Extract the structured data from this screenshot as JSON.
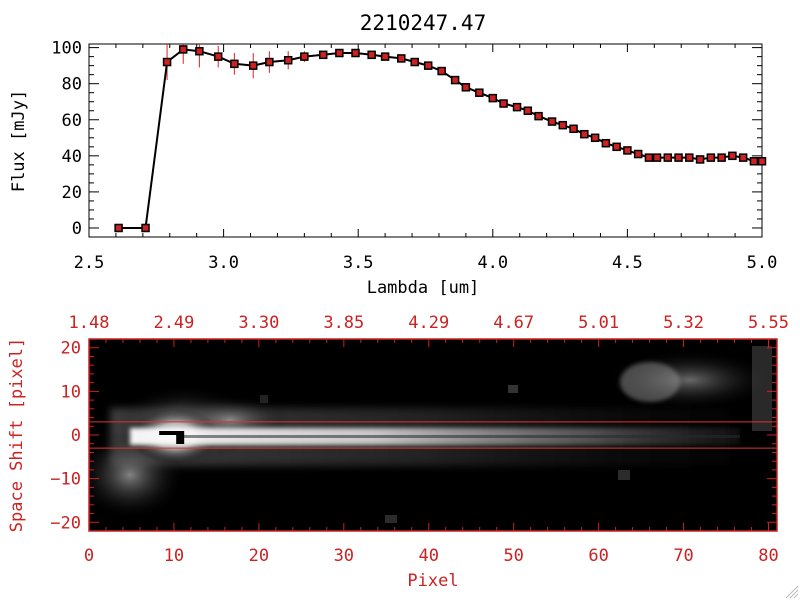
{
  "chart_data": [
    {
      "type": "line",
      "title": "2210247.47",
      "xlabel": "Lambda [um]",
      "ylabel": "Flux [mJy]",
      "xlim": [
        2.5,
        5.0
      ],
      "ylim": [
        -5,
        102
      ],
      "xticks": [
        2.5,
        3.0,
        3.5,
        4.0,
        4.5,
        5.0
      ],
      "xtick_labels": [
        "2.5",
        "3.0",
        "3.5",
        "4.0",
        "4.5",
        "5.0"
      ],
      "yticks": [
        0,
        20,
        40,
        60,
        80,
        100
      ],
      "ytick_labels": [
        "0",
        "20",
        "40",
        "60",
        "80",
        "100"
      ],
      "series": [
        {
          "name": "flux",
          "x": [
            2.61,
            2.71,
            2.79,
            2.85,
            2.91,
            2.98,
            3.04,
            3.11,
            3.17,
            3.24,
            3.3,
            3.37,
            3.43,
            3.49,
            3.55,
            3.6,
            3.66,
            3.71,
            3.76,
            3.81,
            3.86,
            3.9,
            3.95,
            4.0,
            4.04,
            4.09,
            4.13,
            4.17,
            4.22,
            4.26,
            4.3,
            4.34,
            4.38,
            4.42,
            4.46,
            4.5,
            4.54,
            4.58,
            4.61,
            4.65,
            4.69,
            4.73,
            4.77,
            4.81,
            4.85,
            4.89,
            4.93,
            4.97,
            5.0
          ],
          "values": [
            0,
            0,
            92,
            99,
            98,
            95,
            91,
            90,
            92,
            93,
            95,
            96,
            97,
            97,
            96,
            95,
            94,
            92,
            90,
            87,
            82,
            78,
            75,
            72,
            69,
            67,
            65,
            62,
            59,
            57,
            55,
            52,
            50,
            47,
            45,
            43,
            41,
            39,
            39,
            39,
            39,
            39,
            38,
            39,
            39,
            40,
            39,
            37,
            37
          ],
          "err": [
            0,
            0,
            10,
            8,
            9,
            6,
            6,
            7,
            6,
            5,
            3,
            2,
            1,
            1,
            1,
            1,
            1,
            1,
            1,
            1,
            1,
            1,
            1,
            1,
            1,
            1,
            1,
            1,
            1,
            1,
            1,
            1,
            1,
            1,
            1,
            1,
            1,
            1,
            1,
            1,
            1,
            1,
            1,
            1,
            1,
            1,
            1,
            1,
            1
          ]
        }
      ],
      "colors": {
        "line": "#000000",
        "marker": "#cc2222",
        "errorbar": "#dd2222"
      }
    },
    {
      "type": "heatmap",
      "xlabel": "Pixel",
      "ylabel": "Space Shift [pixel]",
      "xlim": [
        0,
        81
      ],
      "ylim": [
        -22,
        22
      ],
      "xticks": [
        0,
        10,
        20,
        30,
        40,
        50,
        60,
        70,
        80
      ],
      "xtick_labels": [
        "0",
        "10",
        "20",
        "30",
        "40",
        "50",
        "60",
        "70",
        "80"
      ],
      "yticks": [
        -20,
        -10,
        0,
        10,
        20
      ],
      "ytick_labels": [
        "−20",
        "−10",
        "0",
        "10",
        "20"
      ],
      "top_axis_ticks": [
        0,
        10,
        20,
        30,
        40,
        50,
        60,
        70,
        80
      ],
      "top_axis_labels": [
        "1.48",
        "2.49",
        "3.30",
        "3.85",
        "4.29",
        "4.67",
        "5.01",
        "5.32",
        "5.55"
      ],
      "extraction_window": [
        -3,
        3
      ],
      "source_peak": {
        "pixel": 10.5,
        "shift": 0
      },
      "colors": {
        "axes": "#cc2222",
        "band": "#dd3333",
        "background": "#000000"
      }
    }
  ]
}
